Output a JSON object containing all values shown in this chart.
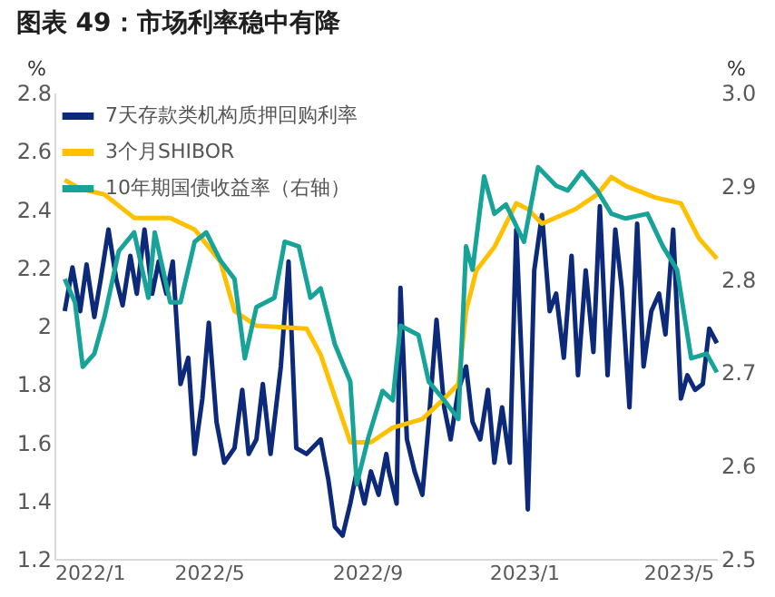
{
  "chart_data": {
    "type": "line",
    "title": "图表 49：市场利率稳中有降",
    "ylabel": "%",
    "y2label": "%",
    "legend": "top left",
    "grid": false,
    "line_style": "solid",
    "marker": "none",
    "xlim": [
      "2022-01-01",
      "2023-05-31"
    ],
    "xticks": [
      {
        "value": "2022-01-01",
        "label": "2022/1"
      },
      {
        "value": "2022-05-01",
        "label": "2022/5"
      },
      {
        "value": "2022-09-01",
        "label": "2022/9"
      },
      {
        "value": "2023-01-01",
        "label": "2023/1"
      },
      {
        "value": "2023-05-01",
        "label": "2023/5"
      }
    ],
    "ylim": [
      1.2,
      2.8
    ],
    "yticks": [
      1.2,
      1.4,
      1.6,
      1.8,
      2,
      2.2,
      2.4,
      2.6,
      2.8
    ],
    "y2lim": [
      2.5,
      3.0
    ],
    "y2ticks": [
      {
        "value": 2.5,
        "label": "2.5"
      },
      {
        "value": 2.6,
        "label": "2.6"
      },
      {
        "value": 2.7,
        "label": "2.7"
      },
      {
        "value": 2.8,
        "label": "2.8"
      },
      {
        "value": 2.9,
        "label": "2.9"
      },
      {
        "value": 3.0,
        "label": "3.0"
      }
    ],
    "series": [
      {
        "name": "7天存款类机构质押回购利率",
        "color": "#0d2a7a",
        "x": [
          "2022-01-09",
          "2022-01-15",
          "2022-01-21",
          "2022-01-26",
          "2022-02-01",
          "2022-02-06",
          "2022-02-12",
          "2022-02-18",
          "2022-02-23",
          "2022-03-01",
          "2022-03-06",
          "2022-03-12",
          "2022-03-18",
          "2022-03-23",
          "2022-03-29",
          "2022-04-03",
          "2022-04-09",
          "2022-04-15",
          "2022-04-20",
          "2022-04-26",
          "2022-05-01",
          "2022-05-07",
          "2022-05-13",
          "2022-05-21",
          "2022-05-27",
          "2022-06-01",
          "2022-06-07",
          "2022-06-12",
          "2022-06-18",
          "2022-06-26",
          "2022-07-02",
          "2022-07-08",
          "2022-07-16",
          "2022-07-27",
          "2022-08-02",
          "2022-08-07",
          "2022-08-13",
          "2022-08-19",
          "2022-08-24",
          "2022-08-30",
          "2022-09-04",
          "2022-09-10",
          "2022-09-16",
          "2022-09-18",
          "2022-09-24",
          "2022-09-27",
          "2022-10-02",
          "2022-10-08",
          "2022-10-14",
          "2022-10-19",
          "2022-10-25",
          "2022-10-31",
          "2022-11-05",
          "2022-11-11",
          "2022-11-17",
          "2022-11-22",
          "2022-11-28",
          "2022-12-04",
          "2022-12-09",
          "2022-12-15",
          "2022-12-21",
          "2022-12-26",
          "2023-01-04",
          "2023-01-09",
          "2023-01-15",
          "2023-01-21",
          "2023-01-26",
          "2023-02-01",
          "2023-02-07",
          "2023-02-12",
          "2023-02-18",
          "2023-02-24",
          "2023-03-01",
          "2023-03-07",
          "2023-03-13",
          "2023-03-18",
          "2023-03-24",
          "2023-03-30",
          "2023-04-04",
          "2023-04-10",
          "2023-04-16",
          "2023-04-21",
          "2023-04-27",
          "2023-05-03",
          "2023-05-08",
          "2023-05-14",
          "2023-05-20",
          "2023-05-25",
          "2023-05-31"
        ],
        "values": [
          2.05,
          2.2,
          2.05,
          2.21,
          2.03,
          2.16,
          2.33,
          2.16,
          2.07,
          2.24,
          2.11,
          2.33,
          2.11,
          2.22,
          2.11,
          2.22,
          1.8,
          1.89,
          1.56,
          1.75,
          2.01,
          1.67,
          1.53,
          1.58,
          1.78,
          1.56,
          1.61,
          1.8,
          1.56,
          1.86,
          2.22,
          1.58,
          1.56,
          1.61,
          1.47,
          1.31,
          1.28,
          1.39,
          1.5,
          1.39,
          1.5,
          1.42,
          1.56,
          1.5,
          1.39,
          2.13,
          1.61,
          1.5,
          1.42,
          1.67,
          2.02,
          1.72,
          1.61,
          1.78,
          1.86,
          1.67,
          1.61,
          1.78,
          1.53,
          1.72,
          1.53,
          2.33,
          1.37,
          2.19,
          2.38,
          2.05,
          2.11,
          1.89,
          2.24,
          1.83,
          2.19,
          1.91,
          2.41,
          1.83,
          2.33,
          2.13,
          1.72,
          2.35,
          1.86,
          2.05,
          2.11,
          1.97,
          2.33,
          1.75,
          1.83,
          1.78,
          1.8,
          1.99,
          1.94
        ]
      },
      {
        "name": "3个月SHIBOR",
        "color": "#ffc000",
        "x": [
          "2022-01-09",
          "2022-01-21",
          "2022-02-09",
          "2022-03-04",
          "2022-04-01",
          "2022-04-20",
          "2022-05-10",
          "2022-05-21",
          "2022-06-07",
          "2022-07-16",
          "2022-07-27",
          "2022-08-19",
          "2022-09-04",
          "2022-09-21",
          "2022-10-14",
          "2022-10-31",
          "2022-11-11",
          "2022-11-17",
          "2022-11-25",
          "2022-12-09",
          "2022-12-26",
          "2023-01-04",
          "2023-01-15",
          "2023-02-10",
          "2023-02-27",
          "2023-03-10",
          "2023-03-21",
          "2023-04-13",
          "2023-05-03",
          "2023-05-17",
          "2023-05-31"
        ],
        "values": [
          2.5,
          2.47,
          2.45,
          2.37,
          2.37,
          2.33,
          2.22,
          2.05,
          2.0,
          1.99,
          1.9,
          1.6,
          1.6,
          1.65,
          1.68,
          1.75,
          1.8,
          2.05,
          2.19,
          2.27,
          2.42,
          2.4,
          2.35,
          2.4,
          2.45,
          2.51,
          2.48,
          2.44,
          2.42,
          2.3,
          2.23
        ]
      },
      {
        "name": "10年期国债收益率（右轴）",
        "color": "#17a398",
        "axis": "y2",
        "x": [
          "2022-01-09",
          "2022-01-17",
          "2022-01-23",
          "2022-02-01",
          "2022-02-09",
          "2022-02-20",
          "2022-03-04",
          "2022-03-15",
          "2022-03-20",
          "2022-04-01",
          "2022-04-09",
          "2022-04-20",
          "2022-04-29",
          "2022-05-10",
          "2022-05-21",
          "2022-05-29",
          "2022-06-07",
          "2022-06-21",
          "2022-06-29",
          "2022-07-10",
          "2022-07-19",
          "2022-07-27",
          "2022-08-07",
          "2022-08-19",
          "2022-08-24",
          "2022-09-02",
          "2022-09-13",
          "2022-09-21",
          "2022-09-27",
          "2022-10-11",
          "2022-10-19",
          "2022-10-31",
          "2022-11-11",
          "2022-11-17",
          "2022-11-22",
          "2022-12-01",
          "2022-12-09",
          "2022-12-18",
          "2023-01-01",
          "2023-01-12",
          "2023-01-26",
          "2023-02-04",
          "2023-02-15",
          "2023-02-27",
          "2023-03-10",
          "2023-03-21",
          "2023-04-07",
          "2023-04-19",
          "2023-04-30",
          "2023-05-11",
          "2023-05-23",
          "2023-05-31"
        ],
        "values": [
          2.8,
          2.775,
          2.706,
          2.72,
          2.76,
          2.83,
          2.85,
          2.78,
          2.85,
          2.775,
          2.775,
          2.84,
          2.85,
          2.82,
          2.8,
          2.715,
          2.77,
          2.78,
          2.84,
          2.835,
          2.78,
          2.79,
          2.73,
          2.69,
          2.58,
          2.63,
          2.68,
          2.67,
          2.75,
          2.74,
          2.69,
          2.67,
          2.65,
          2.835,
          2.81,
          2.91,
          2.87,
          2.88,
          2.84,
          2.92,
          2.9,
          2.895,
          2.915,
          2.895,
          2.87,
          2.865,
          2.87,
          2.835,
          2.81,
          2.715,
          2.72,
          2.7
        ]
      }
    ]
  }
}
